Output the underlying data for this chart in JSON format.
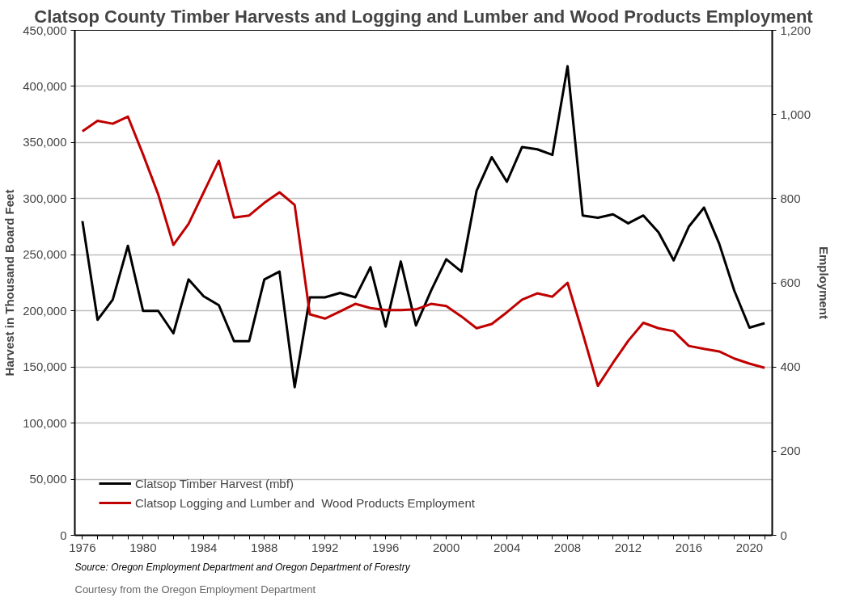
{
  "chart_data": {
    "type": "line",
    "title": "Clatsop County Timber Harvests and Logging and Lumber and Wood Products Employment",
    "ylabel": "Harvest in Thousand Board Feet",
    "y2label": "Employment",
    "x": [
      1976,
      1977,
      1978,
      1979,
      1980,
      1981,
      1982,
      1983,
      1984,
      1985,
      1986,
      1987,
      1988,
      1989,
      1990,
      1991,
      1992,
      1993,
      1994,
      1995,
      1996,
      1997,
      1998,
      1999,
      2000,
      2001,
      2002,
      2003,
      2004,
      2005,
      2006,
      2007,
      2008,
      2009,
      2010,
      2011,
      2012,
      2013,
      2014,
      2015,
      2016,
      2017,
      2018,
      2019,
      2020,
      2021
    ],
    "series": [
      {
        "name": "Clatsop Timber Harvest (mbf)",
        "color": "#000000",
        "values": [
          280000,
          192000,
          210000,
          258000,
          200000,
          200000,
          180000,
          228000,
          213000,
          205000,
          173000,
          173000,
          228000,
          235000,
          132000,
          212000,
          212000,
          216000,
          212000,
          239000,
          186000,
          244000,
          187000,
          218000,
          246000,
          235000,
          307000,
          337000,
          315000,
          346000,
          344000,
          339000,
          418000,
          285000,
          283000,
          286000,
          278000,
          285000,
          270000,
          245000,
          275000,
          292000,
          260000,
          218000,
          185000,
          189000
        ]
      },
      {
        "name": "Clatsop Logging and Lumber and  Wood Products Employment",
        "color": "#c00000",
        "axis": "y2",
        "values": [
          960,
          985,
          978,
          995,
          905,
          810,
          690,
          740,
          815,
          890,
          755,
          760,
          790,
          815,
          785,
          525,
          515,
          532,
          550,
          540,
          535,
          535,
          537,
          550,
          545,
          520,
          492,
          502,
          530,
          560,
          575,
          567,
          600,
          480,
          355,
          410,
          462,
          505,
          492,
          485,
          450,
          443,
          437,
          420,
          408,
          398
        ]
      }
    ],
    "xlim": [
      1975.5,
      2021.5
    ],
    "xticks": [
      1976,
      {
        "value": 1977,
        "label": null
      },
      {
        "value": 1978,
        "label": null
      },
      {
        "value": 1979,
        "label": null
      },
      1980,
      {
        "value": 1981,
        "label": null
      },
      {
        "value": 1982,
        "label": null
      },
      {
        "value": 1983,
        "label": null
      },
      1984,
      {
        "value": 1985,
        "label": null
      },
      {
        "value": 1986,
        "label": null
      },
      {
        "value": 1987,
        "label": null
      },
      1988,
      {
        "value": 1989,
        "label": null
      },
      {
        "value": 1990,
        "label": null
      },
      {
        "value": 1991,
        "label": null
      },
      1992,
      {
        "value": 1993,
        "label": null
      },
      {
        "value": 1994,
        "label": null
      },
      {
        "value": 1995,
        "label": null
      },
      1996,
      {
        "value": 1997,
        "label": null
      },
      {
        "value": 1998,
        "label": null
      },
      {
        "value": 1999,
        "label": null
      },
      2000,
      {
        "value": 2001,
        "label": null
      },
      {
        "value": 2002,
        "label": null
      },
      {
        "value": 2003,
        "label": null
      },
      2004,
      {
        "value": 2005,
        "label": null
      },
      {
        "value": 2006,
        "label": null
      },
      {
        "value": 2007,
        "label": null
      },
      2008,
      {
        "value": 2009,
        "label": null
      },
      {
        "value": 2010,
        "label": null
      },
      {
        "value": 2011,
        "label": null
      },
      2012,
      {
        "value": 2013,
        "label": null
      },
      {
        "value": 2014,
        "label": null
      },
      {
        "value": 2015,
        "label": null
      },
      2016,
      {
        "value": 2017,
        "label": null
      },
      {
        "value": 2018,
        "label": null
      },
      {
        "value": 2019,
        "label": null
      },
      2020,
      {
        "value": 2021,
        "label": null
      }
    ],
    "ylim": [
      0,
      450000
    ],
    "yticks": [
      {
        "value": 0,
        "label": "0"
      },
      {
        "value": 50000,
        "label": "50,000"
      },
      {
        "value": 100000,
        "label": "100,000"
      },
      {
        "value": 150000,
        "label": "150,000"
      },
      {
        "value": 200000,
        "label": "200,000"
      },
      {
        "value": 250000,
        "label": "250,000"
      },
      {
        "value": 300000,
        "label": "300,000"
      },
      {
        "value": 350000,
        "label": "350,000"
      },
      {
        "value": 400000,
        "label": "400,000"
      },
      {
        "value": 450000,
        "label": "450,000"
      }
    ],
    "y2lim": [
      0,
      1200
    ],
    "y2ticks": [
      0,
      200,
      400,
      600,
      800,
      {
        "value": 1000,
        "label": "1,000"
      },
      {
        "value": 1200,
        "label": "1,200"
      }
    ],
    "grid": "y",
    "legend": "bottom left",
    "marker": "none",
    "line_style": "solid",
    "annotations": [
      "Source: Oregon Employment Department and Oregon Department of Forestry",
      "Courtesy from the Oregon Employment Department"
    ]
  }
}
